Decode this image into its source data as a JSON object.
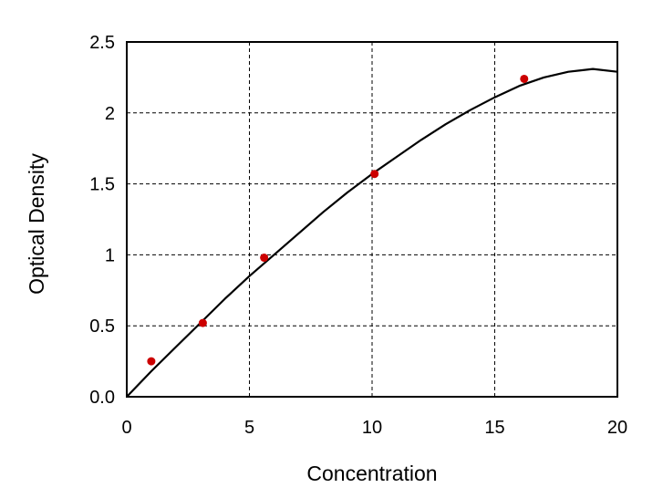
{
  "chart_data": {
    "type": "scatter",
    "title": "",
    "xlabel": "Concentration",
    "ylabel": "Optical Density",
    "xlim": [
      0,
      20
    ],
    "ylim": [
      0,
      2.5
    ],
    "x_ticks": [
      "0",
      "5",
      "10",
      "15",
      "20"
    ],
    "y_ticks": [
      "0.0",
      "0.5",
      "1",
      "1.5",
      "2",
      "2.5"
    ],
    "x_tick_values": [
      0,
      5,
      10,
      15,
      20
    ],
    "y_tick_values": [
      0,
      0.5,
      1,
      1.5,
      2,
      2.5
    ],
    "grid": "dashed",
    "legend": "none",
    "series": [
      {
        "kind": "points",
        "color": "#cc0000",
        "x": [
          1.0,
          3.1,
          5.6,
          10.1,
          16.2
        ],
        "y": [
          0.25,
          0.52,
          0.98,
          1.57,
          2.24
        ]
      },
      {
        "kind": "fit-curve",
        "color": "#000000",
        "x": [
          0,
          1,
          2,
          3,
          4,
          5,
          6,
          7,
          8,
          9,
          10,
          11,
          12,
          13,
          14,
          15,
          16,
          17,
          18,
          19,
          20
        ],
        "y": [
          0.0,
          0.18,
          0.35,
          0.52,
          0.69,
          0.85,
          1.0,
          1.15,
          1.3,
          1.44,
          1.57,
          1.69,
          1.81,
          1.92,
          2.02,
          2.11,
          2.19,
          2.25,
          2.29,
          2.31,
          2.29
        ]
      }
    ]
  }
}
